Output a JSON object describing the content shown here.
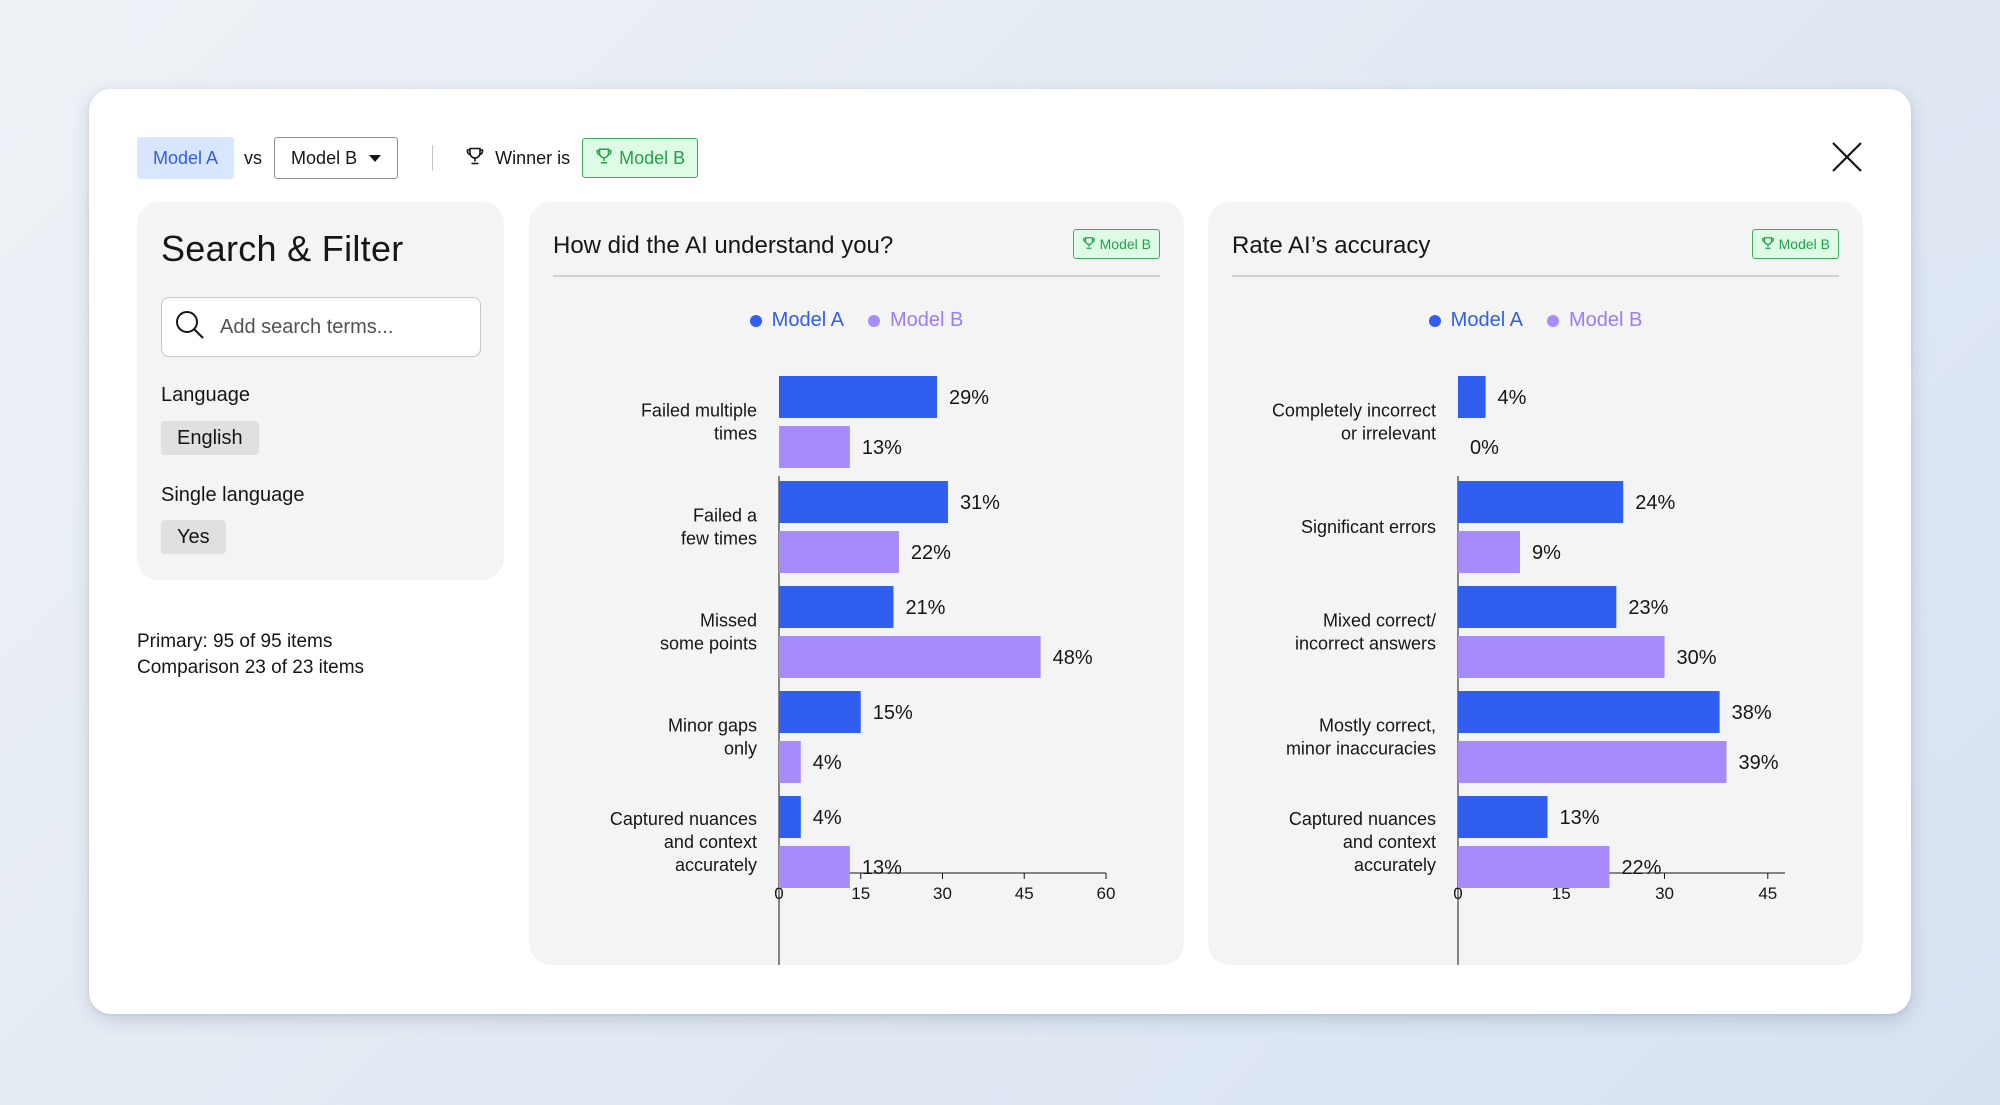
{
  "topbar": {
    "model_a": "Model A",
    "vs": "vs",
    "model_b_select": "Model B",
    "winner_label": "Winner is",
    "winner_value": "Model B"
  },
  "filter": {
    "title": "Search & Filter",
    "search_placeholder": "Add search terms...",
    "language_label": "Language",
    "language_value": "English",
    "single_language_label": "Single language",
    "single_language_value": "Yes"
  },
  "counts": {
    "primary": "Primary: 95 of 95 items",
    "comparison": "Comparison 23 of 23 items"
  },
  "colors": {
    "model_a": "#2f5ef0",
    "model_b": "#a78bfa",
    "winner_green": "#24a148",
    "legend_a_text": "#2f5ee8",
    "legend_b_text": "#9b7cf7"
  },
  "icons": {
    "winner": "trophy-icon",
    "close": "close-icon",
    "search": "search-icon",
    "dropdown": "caret-down-icon"
  },
  "chart_data": [
    {
      "type": "bar",
      "orientation": "horizontal",
      "title": "How did the AI understand you?",
      "badge": "Model B",
      "categories": [
        [
          "Failed multiple",
          "times"
        ],
        [
          "Failed a",
          "few times"
        ],
        [
          "Missed",
          "some points"
        ],
        [
          "Minor gaps",
          "only"
        ],
        [
          "Captured nuances",
          "and context",
          "accurately"
        ]
      ],
      "series": [
        {
          "name": "Model A",
          "values": [
            29,
            31,
            21,
            15,
            4
          ]
        },
        {
          "name": "Model B",
          "values": [
            13,
            22,
            48,
            4,
            13
          ]
        }
      ],
      "xlim": [
        0,
        60
      ],
      "xticks": [
        0,
        15,
        30,
        45,
        60
      ],
      "value_suffix": "%",
      "legend_position": "top-center"
    },
    {
      "type": "bar",
      "orientation": "horizontal",
      "title": "Rate AI’s accuracy",
      "badge": "Model B",
      "categories": [
        [
          "Completely incorrect",
          "or irrelevant"
        ],
        [
          "Significant errors"
        ],
        [
          "Mixed correct/",
          "incorrect answers"
        ],
        [
          "Mostly correct,",
          "minor inaccuracies"
        ],
        [
          "Captured nuances",
          "and context",
          "accurately"
        ]
      ],
      "series": [
        {
          "name": "Model A",
          "values": [
            4,
            24,
            23,
            38,
            13
          ]
        },
        {
          "name": "Model B",
          "values": [
            0,
            9,
            30,
            39,
            22
          ]
        }
      ],
      "xlim": [
        0,
        47.5
      ],
      "xticks": [
        0,
        15,
        30,
        45
      ],
      "value_suffix": "%",
      "legend_position": "top-center"
    }
  ]
}
